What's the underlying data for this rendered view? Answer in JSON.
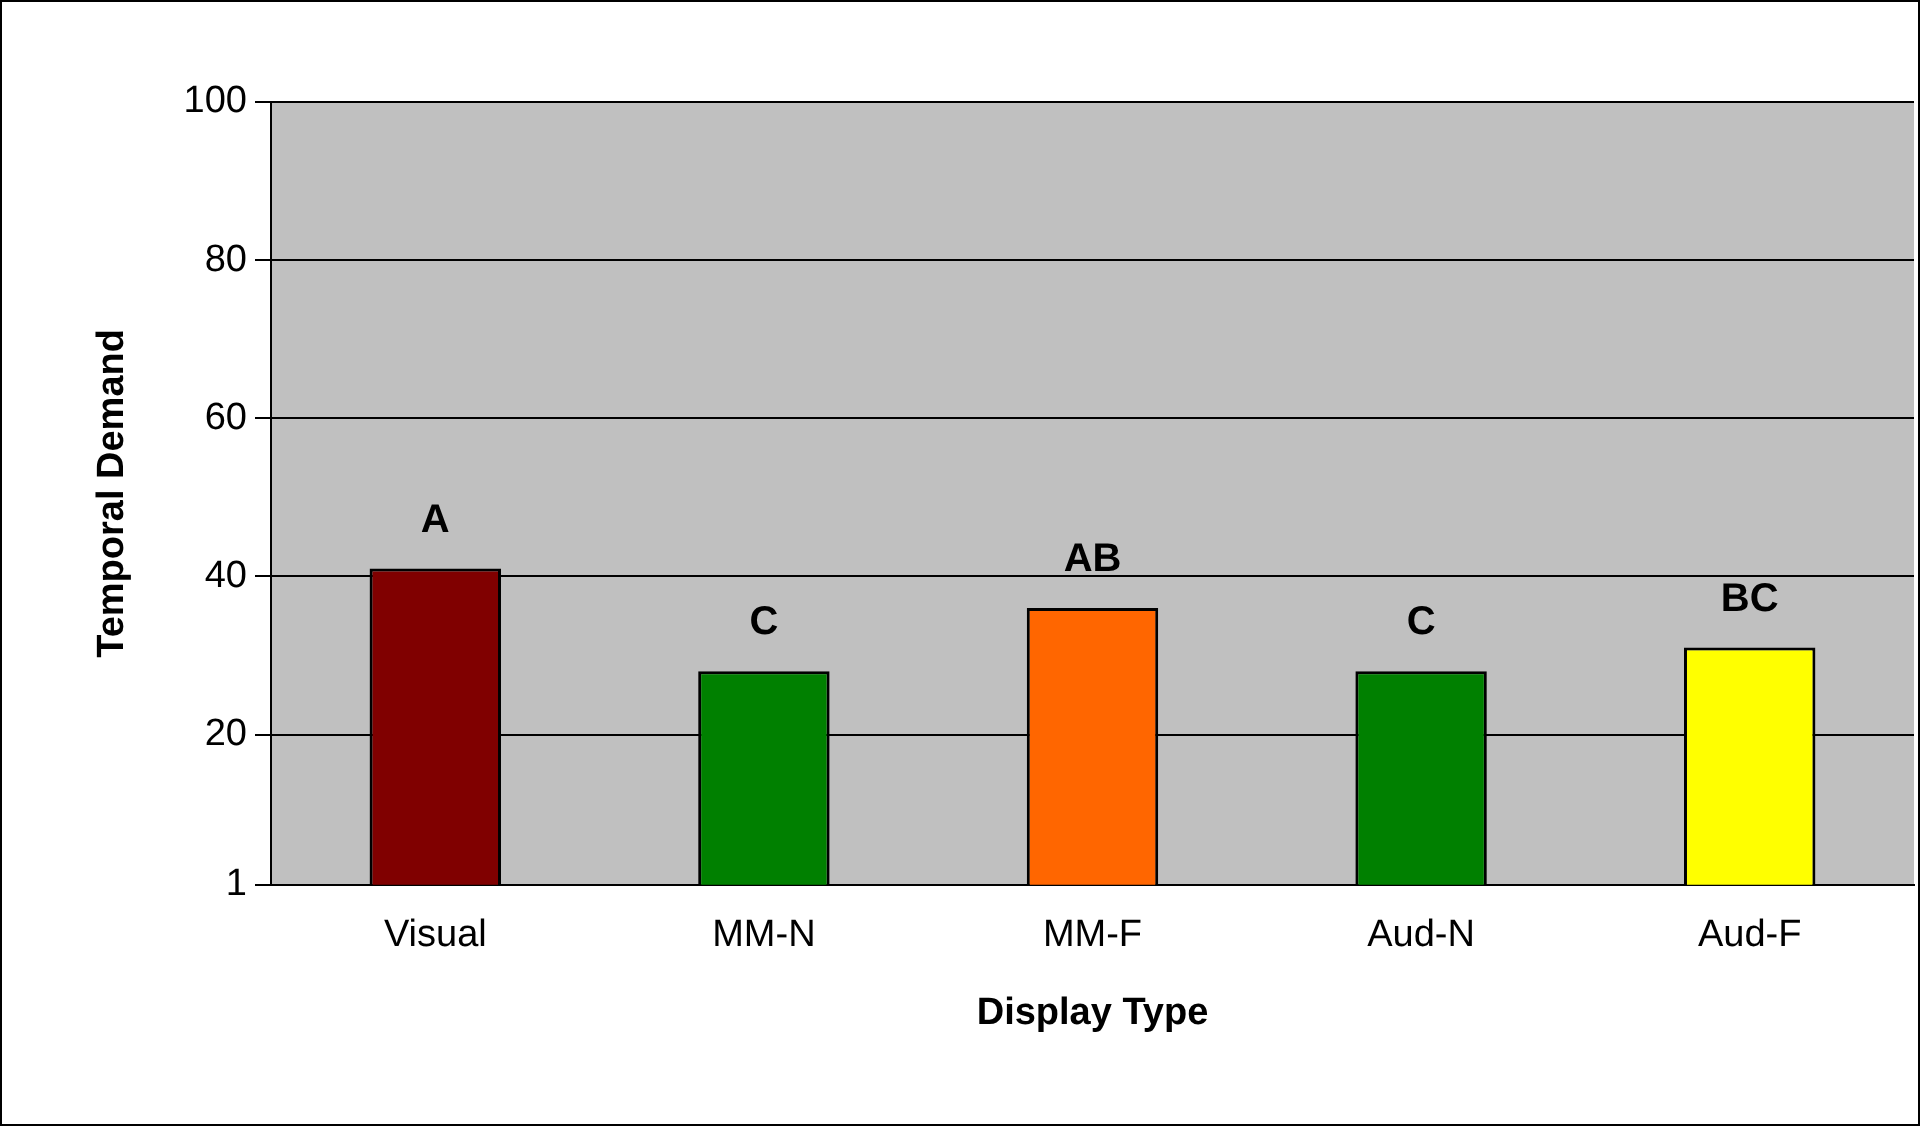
{
  "chart_data": {
    "type": "bar",
    "xlabel": "Display Type",
    "ylabel": "Temporal Demand",
    "categories": [
      "Visual",
      "MM-N",
      "MM-F",
      "Aud-N",
      "Aud-F"
    ],
    "values": [
      41,
      28,
      36,
      28,
      31
    ],
    "colors": [
      "#800000",
      "#008000",
      "#ff6600",
      "#008000",
      "#ffff00"
    ],
    "ylim": [
      1,
      100
    ],
    "yticks": [
      1,
      20,
      40,
      60,
      80,
      100
    ],
    "grid": "y",
    "legend": false,
    "annotations": [
      {
        "text": "A",
        "x": "Visual",
        "y": 41
      },
      {
        "text": "C",
        "x": "MM-N",
        "y": 28
      },
      {
        "text": "AB",
        "x": "MM-F",
        "y": 36
      },
      {
        "text": "C",
        "x": "Aud-N",
        "y": 28
      },
      {
        "text": "BC",
        "x": "Aud-F",
        "y": 31
      }
    ]
  }
}
